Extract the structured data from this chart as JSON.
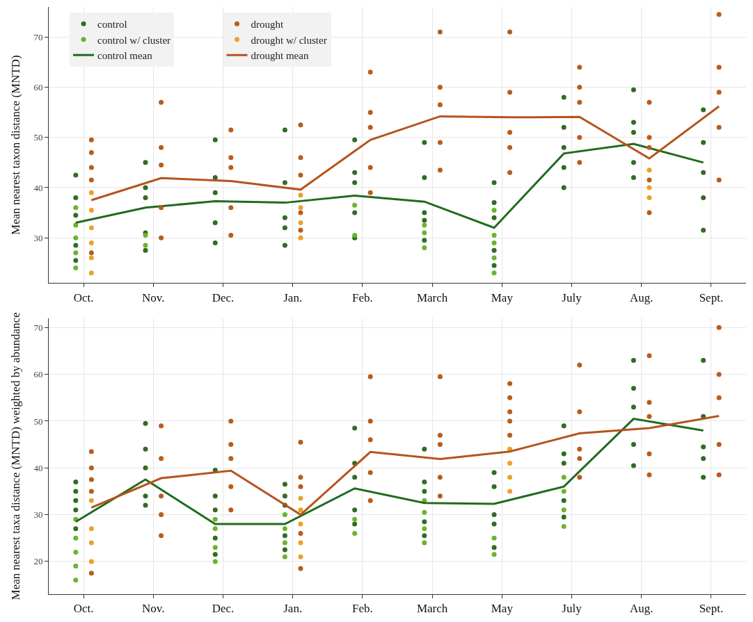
{
  "chart_data": [
    {
      "type": "scatter",
      "ylabel": "Mean nearest taxon distance (MNTD)",
      "categories": [
        "Oct.",
        "Nov.",
        "Dec.",
        "Jan.",
        "Feb.",
        "March",
        "May",
        "July",
        "Aug.",
        "Sept."
      ],
      "ylim": [
        21,
        76
      ],
      "yticks": [
        30,
        40,
        50,
        60,
        70
      ],
      "grid": true,
      "legend": "top left",
      "marker": "circle",
      "series": [
        {
          "name": "control",
          "color": "#336b24",
          "x": [
            "Oct.",
            "Oct.",
            "Oct.",
            "Oct.",
            "Oct.",
            "Nov.",
            "Nov.",
            "Nov.",
            "Nov.",
            "Nov.",
            "Dec.",
            "Dec.",
            "Dec.",
            "Dec.",
            "Dec.",
            "Jan.",
            "Jan.",
            "Jan.",
            "Jan.",
            "Jan.",
            "Feb.",
            "Feb.",
            "Feb.",
            "Feb.",
            "Feb.",
            "March",
            "March",
            "March",
            "March",
            "March",
            "May",
            "May",
            "May",
            "May",
            "May",
            "July",
            "July",
            "July",
            "July",
            "July",
            "Aug.",
            "Aug.",
            "Aug.",
            "Aug.",
            "Aug.",
            "Sept.",
            "Sept.",
            "Sept.",
            "Sept.",
            "Sept."
          ],
          "values": [
            25.5,
            28.5,
            34.5,
            38,
            42.5,
            27.5,
            31,
            38,
            40,
            45,
            29,
            33,
            39,
            42,
            49.5,
            28.5,
            32,
            34,
            41,
            51.5,
            30,
            35,
            41,
            43,
            49.5,
            29.5,
            33.5,
            35,
            42,
            49,
            24.5,
            27.5,
            34,
            37,
            41,
            40,
            44,
            48,
            52,
            58,
            42,
            45,
            51,
            53,
            59.5,
            31.5,
            38,
            43,
            49,
            55.5
          ]
        },
        {
          "name": "control w/ cluster",
          "color": "#6ab42d",
          "x": [
            "Oct.",
            "Oct.",
            "Oct.",
            "Oct.",
            "Oct.",
            "Nov.",
            "Nov.",
            "Feb.",
            "Feb.",
            "March",
            "March",
            "March",
            "May",
            "May",
            "May",
            "May",
            "May"
          ],
          "values": [
            24,
            27,
            30,
            32.5,
            36,
            28.5,
            30.5,
            30.5,
            36.5,
            28,
            31,
            32.5,
            23,
            26,
            29,
            30.5,
            35.5
          ]
        },
        {
          "name": "control mean",
          "type": "line",
          "color": "#1f6b1f",
          "marker": "none",
          "x": [
            "Oct.",
            "Nov.",
            "Dec.",
            "Jan.",
            "Feb.",
            "March",
            "May",
            "July",
            "Aug.",
            "Sept."
          ],
          "values": [
            33,
            36,
            37.3,
            37,
            38.4,
            37.2,
            32,
            46.8,
            48.7,
            45
          ]
        },
        {
          "name": "drought",
          "color": "#b85c1a",
          "x": [
            "Oct.",
            "Oct.",
            "Oct.",
            "Oct.",
            "Oct.",
            "Nov.",
            "Nov.",
            "Nov.",
            "Nov.",
            "Nov.",
            "Dec.",
            "Dec.",
            "Dec.",
            "Dec.",
            "Dec.",
            "Jan.",
            "Jan.",
            "Jan.",
            "Jan.",
            "Jan.",
            "Feb.",
            "Feb.",
            "Feb.",
            "Feb.",
            "Feb.",
            "March",
            "March",
            "March",
            "March",
            "March",
            "May",
            "May",
            "May",
            "May",
            "May",
            "July",
            "July",
            "July",
            "July",
            "July",
            "Aug.",
            "Aug.",
            "Aug.",
            "Aug.",
            "Aug.",
            "Sept.",
            "Sept.",
            "Sept.",
            "Sept.",
            "Sept."
          ],
          "values": [
            27,
            41.5,
            44,
            47,
            49.5,
            30,
            36,
            44.5,
            48,
            57,
            30.5,
            36,
            44,
            46,
            51.5,
            31.5,
            35,
            42.5,
            46,
            52.5,
            39,
            44,
            52,
            55,
            63,
            43.5,
            49,
            56.5,
            60,
            71,
            43,
            48,
            51,
            59,
            71,
            45,
            50,
            57,
            60,
            64,
            35,
            41.5,
            48,
            50,
            57,
            41.5,
            52,
            59,
            64,
            74.5
          ]
        },
        {
          "name": "drought w/ cluster",
          "color": "#eba02a",
          "x": [
            "Oct.",
            "Oct.",
            "Oct.",
            "Oct.",
            "Oct.",
            "Oct.",
            "Jan.",
            "Jan.",
            "Jan.",
            "Jan.",
            "Aug.",
            "Aug.",
            "Aug."
          ],
          "values": [
            23,
            26,
            29,
            32,
            35.5,
            39,
            30,
            33,
            36,
            38.5,
            38,
            40,
            43.5
          ]
        },
        {
          "name": "drought mean",
          "type": "line",
          "color": "#b5541c",
          "marker": "none",
          "x": [
            "Oct.",
            "Nov.",
            "Dec.",
            "Jan.",
            "Feb.",
            "March",
            "May",
            "July",
            "Aug.",
            "Sept."
          ],
          "values": [
            37.5,
            41.9,
            41.3,
            39.6,
            49.5,
            54.2,
            54,
            54.1,
            45.8,
            56.2
          ]
        }
      ]
    },
    {
      "type": "scatter",
      "ylabel": "Mean nearest taxa distance (MNTD) weighted by abundance",
      "categories": [
        "Oct.",
        "Nov.",
        "Dec.",
        "Jan.",
        "Feb.",
        "March",
        "May",
        "July",
        "Aug.",
        "Sept."
      ],
      "ylim": [
        13,
        72
      ],
      "yticks": [
        20,
        30,
        40,
        50,
        60,
        70
      ],
      "grid": true,
      "marker": "circle",
      "series": [
        {
          "color": "#336b24",
          "x": [
            "Oct.",
            "Oct.",
            "Oct.",
            "Oct.",
            "Oct.",
            "Nov.",
            "Nov.",
            "Nov.",
            "Nov.",
            "Nov.",
            "Dec.",
            "Dec.",
            "Dec.",
            "Dec.",
            "Dec.",
            "Jan.",
            "Jan.",
            "Jan.",
            "Jan.",
            "Jan.",
            "Feb.",
            "Feb.",
            "Feb.",
            "Feb.",
            "Feb.",
            "March",
            "March",
            "March",
            "March",
            "March",
            "May",
            "May",
            "May",
            "May",
            "May",
            "July",
            "July",
            "July",
            "July",
            "July",
            "Aug.",
            "Aug.",
            "Aug.",
            "Aug.",
            "Aug.",
            "Sept.",
            "Sept.",
            "Sept.",
            "Sept.",
            "Sept."
          ],
          "values": [
            27,
            31,
            33,
            35,
            37,
            32,
            34,
            40,
            44,
            49.5,
            21.5,
            25,
            31,
            34,
            39.5,
            22.5,
            25.5,
            32,
            34,
            36.5,
            28,
            31,
            38,
            41,
            48.5,
            25.5,
            28.5,
            35,
            37,
            44,
            23,
            28,
            30,
            36,
            39,
            29.5,
            33,
            41,
            43,
            49,
            40.5,
            45,
            53,
            57,
            63,
            38,
            42,
            44.5,
            51,
            63
          ]
        },
        {
          "color": "#6ab42d",
          "x": [
            "Oct.",
            "Oct.",
            "Oct.",
            "Oct.",
            "Oct.",
            "Dec.",
            "Dec.",
            "Dec.",
            "Dec.",
            "Jan.",
            "Jan.",
            "Jan.",
            "Jan.",
            "Feb.",
            "Feb.",
            "March",
            "March",
            "March",
            "March",
            "May",
            "May",
            "July",
            "July",
            "July",
            "July"
          ],
          "values": [
            16,
            19,
            22,
            25,
            29,
            20,
            23,
            27,
            29,
            21,
            24,
            27,
            30,
            26,
            29,
            24,
            27,
            30.5,
            33,
            21.5,
            25,
            27.5,
            31,
            35,
            38
          ]
        },
        {
          "type": "line",
          "color": "#1f6b1f",
          "marker": "none",
          "x": [
            "Oct.",
            "Nov.",
            "Dec.",
            "Jan.",
            "Feb.",
            "March",
            "May",
            "July",
            "Aug.",
            "Sept."
          ],
          "values": [
            28.5,
            37.5,
            28,
            28,
            35.6,
            32.5,
            32.3,
            36,
            50.5,
            48
          ]
        },
        {
          "color": "#b85c1a",
          "x": [
            "Oct.",
            "Oct.",
            "Oct.",
            "Oct.",
            "Oct.",
            "Nov.",
            "Nov.",
            "Nov.",
            "Nov.",
            "Nov.",
            "Dec.",
            "Dec.",
            "Dec.",
            "Dec.",
            "Dec.",
            "Jan.",
            "Jan.",
            "Jan.",
            "Jan.",
            "Jan.",
            "Feb.",
            "Feb.",
            "Feb.",
            "Feb.",
            "Feb.",
            "March",
            "March",
            "March",
            "March",
            "March",
            "May",
            "May",
            "May",
            "May",
            "May",
            "July",
            "July",
            "July",
            "July",
            "July",
            "Aug.",
            "Aug.",
            "Aug.",
            "Aug.",
            "Aug.",
            "Sept.",
            "Sept.",
            "Sept.",
            "Sept.",
            "Sept."
          ],
          "values": [
            17.5,
            35,
            37.5,
            40,
            43.5,
            25.5,
            30,
            34,
            42,
            49,
            31,
            36,
            42,
            45,
            50,
            18.5,
            26,
            36,
            38,
            45.5,
            33,
            39,
            46,
            50,
            59.5,
            34,
            38,
            45,
            47,
            59.5,
            47,
            50,
            52,
            55,
            58,
            38,
            42,
            44,
            52,
            62,
            38.5,
            43,
            51,
            54,
            64,
            38.5,
            45,
            55,
            60,
            70
          ]
        },
        {
          "color": "#eba02a",
          "x": [
            "Oct.",
            "Oct.",
            "Oct.",
            "Oct.",
            "Jan.",
            "Jan.",
            "Jan.",
            "Jan.",
            "Jan.",
            "May",
            "May",
            "May",
            "May"
          ],
          "values": [
            20,
            24,
            27,
            33,
            21,
            24,
            28,
            31,
            33.5,
            35,
            38,
            41,
            44
          ]
        },
        {
          "type": "line",
          "color": "#b5541c",
          "marker": "none",
          "x": [
            "Oct.",
            "Nov.",
            "Dec.",
            "Jan.",
            "Feb.",
            "March",
            "May",
            "July",
            "Aug.",
            "Sept."
          ],
          "values": [
            31.5,
            37.8,
            39.4,
            30,
            43.4,
            41.9,
            43.5,
            47.4,
            48.5,
            51.1
          ]
        }
      ]
    }
  ]
}
